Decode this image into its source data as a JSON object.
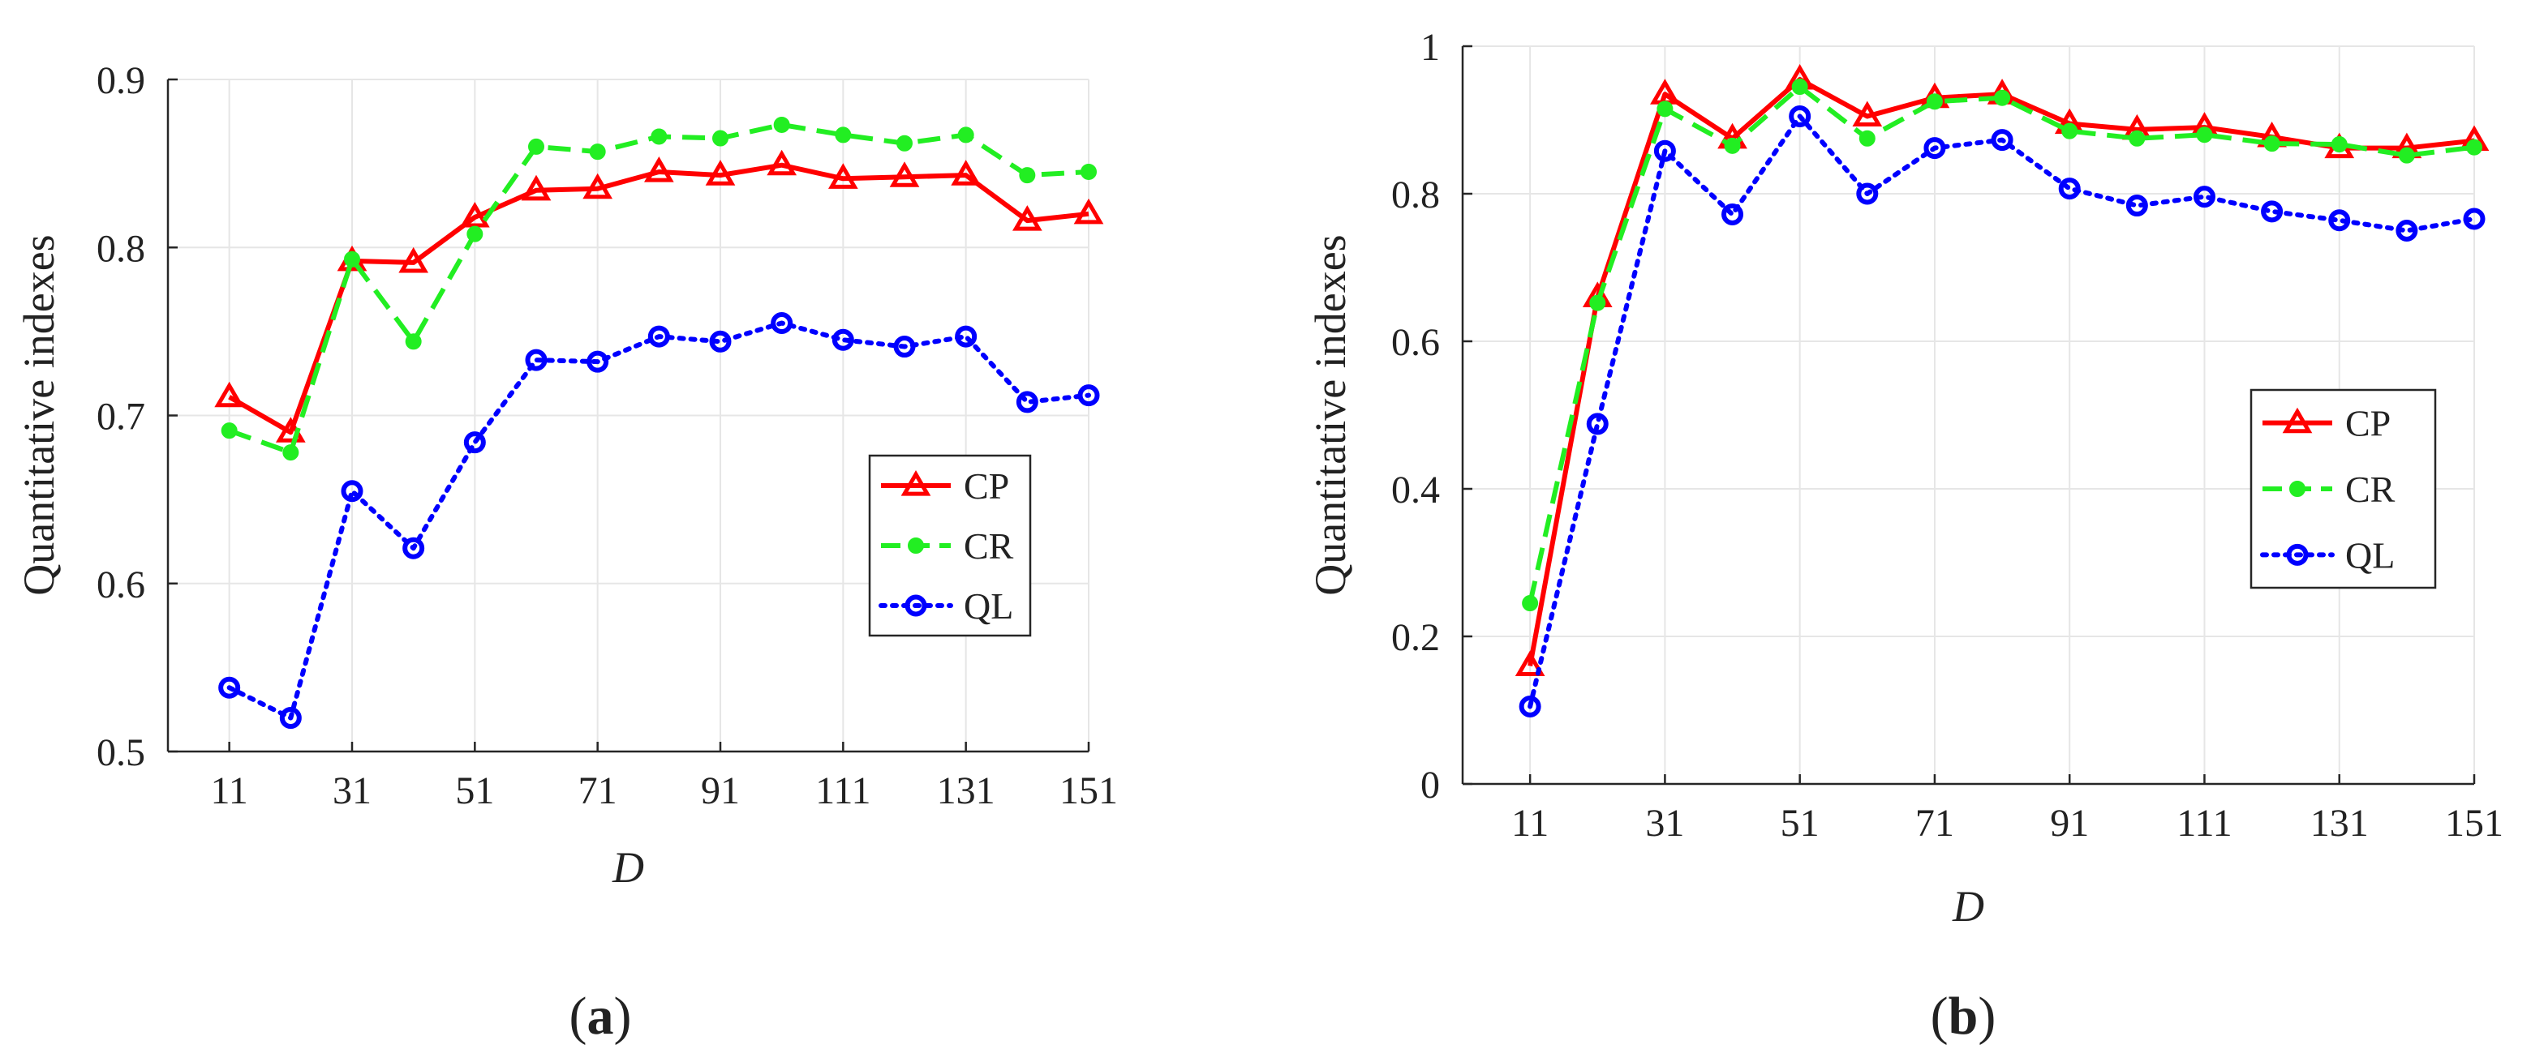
{
  "chart_data": [
    {
      "type": "line",
      "panel_label": "a",
      "xlabel": "D",
      "ylabel": "Quantitative indexes",
      "x": [
        11,
        21,
        31,
        41,
        51,
        61,
        71,
        81,
        91,
        101,
        111,
        121,
        131,
        141,
        151
      ],
      "xticks": [
        11,
        31,
        51,
        71,
        91,
        111,
        131,
        151
      ],
      "xlim": [
        1,
        151
      ],
      "ylim": [
        0.5,
        0.9
      ],
      "yticks": [
        0.5,
        0.6,
        0.7,
        0.8,
        0.9
      ],
      "ytick_labels": [
        "0.5",
        "0.6",
        "0.7",
        "0.8",
        "0.9"
      ],
      "grid": true,
      "legend_position": "center-right",
      "series": [
        {
          "name": "CP",
          "color": "#ff0000",
          "style": "solid",
          "marker": "triangle",
          "values": [
            0.711,
            0.69,
            0.792,
            0.791,
            0.818,
            0.834,
            0.835,
            0.845,
            0.843,
            0.849,
            0.841,
            0.842,
            0.843,
            0.816,
            0.82
          ]
        },
        {
          "name": "CR",
          "color": "#22ee22",
          "style": "dashed",
          "marker": "dot",
          "values": [
            0.691,
            0.678,
            0.793,
            0.744,
            0.808,
            0.86,
            0.857,
            0.866,
            0.865,
            0.873,
            0.867,
            0.862,
            0.867,
            0.843,
            0.845
          ]
        },
        {
          "name": "QL",
          "color": "#0000ff",
          "style": "dotted",
          "marker": "circle",
          "values": [
            0.538,
            0.52,
            0.655,
            0.621,
            0.684,
            0.733,
            0.732,
            0.747,
            0.744,
            0.755,
            0.745,
            0.741,
            0.747,
            0.708,
            0.712
          ]
        }
      ]
    },
    {
      "type": "line",
      "panel_label": "b",
      "xlabel": "D",
      "ylabel": "Quantitative indexes",
      "x": [
        11,
        21,
        31,
        41,
        51,
        61,
        71,
        81,
        91,
        101,
        111,
        121,
        131,
        141,
        151
      ],
      "xticks": [
        11,
        31,
        51,
        71,
        91,
        111,
        131,
        151
      ],
      "xlim": [
        1,
        151
      ],
      "ylim": [
        0,
        1
      ],
      "yticks": [
        0,
        0.2,
        0.4,
        0.6,
        0.8,
        1
      ],
      "ytick_labels": [
        "0",
        "0.2",
        "0.4",
        "0.6",
        "0.8",
        "1"
      ],
      "grid": true,
      "legend_position": "center-right",
      "series": [
        {
          "name": "CP",
          "color": "#ff0000",
          "style": "solid",
          "marker": "triangle",
          "values": [
            0.16,
            0.66,
            0.935,
            0.875,
            0.955,
            0.905,
            0.93,
            0.935,
            0.895,
            0.887,
            0.89,
            0.877,
            0.862,
            0.862,
            0.872
          ]
        },
        {
          "name": "CR",
          "color": "#22ee22",
          "style": "dashed",
          "marker": "dot",
          "values": [
            0.245,
            0.652,
            0.915,
            0.865,
            0.945,
            0.875,
            0.925,
            0.93,
            0.885,
            0.875,
            0.88,
            0.868,
            0.867,
            0.852,
            0.863
          ]
        },
        {
          "name": "QL",
          "color": "#0000ff",
          "style": "dotted",
          "marker": "circle",
          "values": [
            0.105,
            0.488,
            0.858,
            0.772,
            0.905,
            0.8,
            0.862,
            0.873,
            0.807,
            0.784,
            0.796,
            0.776,
            0.764,
            0.75,
            0.766
          ]
        }
      ]
    }
  ]
}
